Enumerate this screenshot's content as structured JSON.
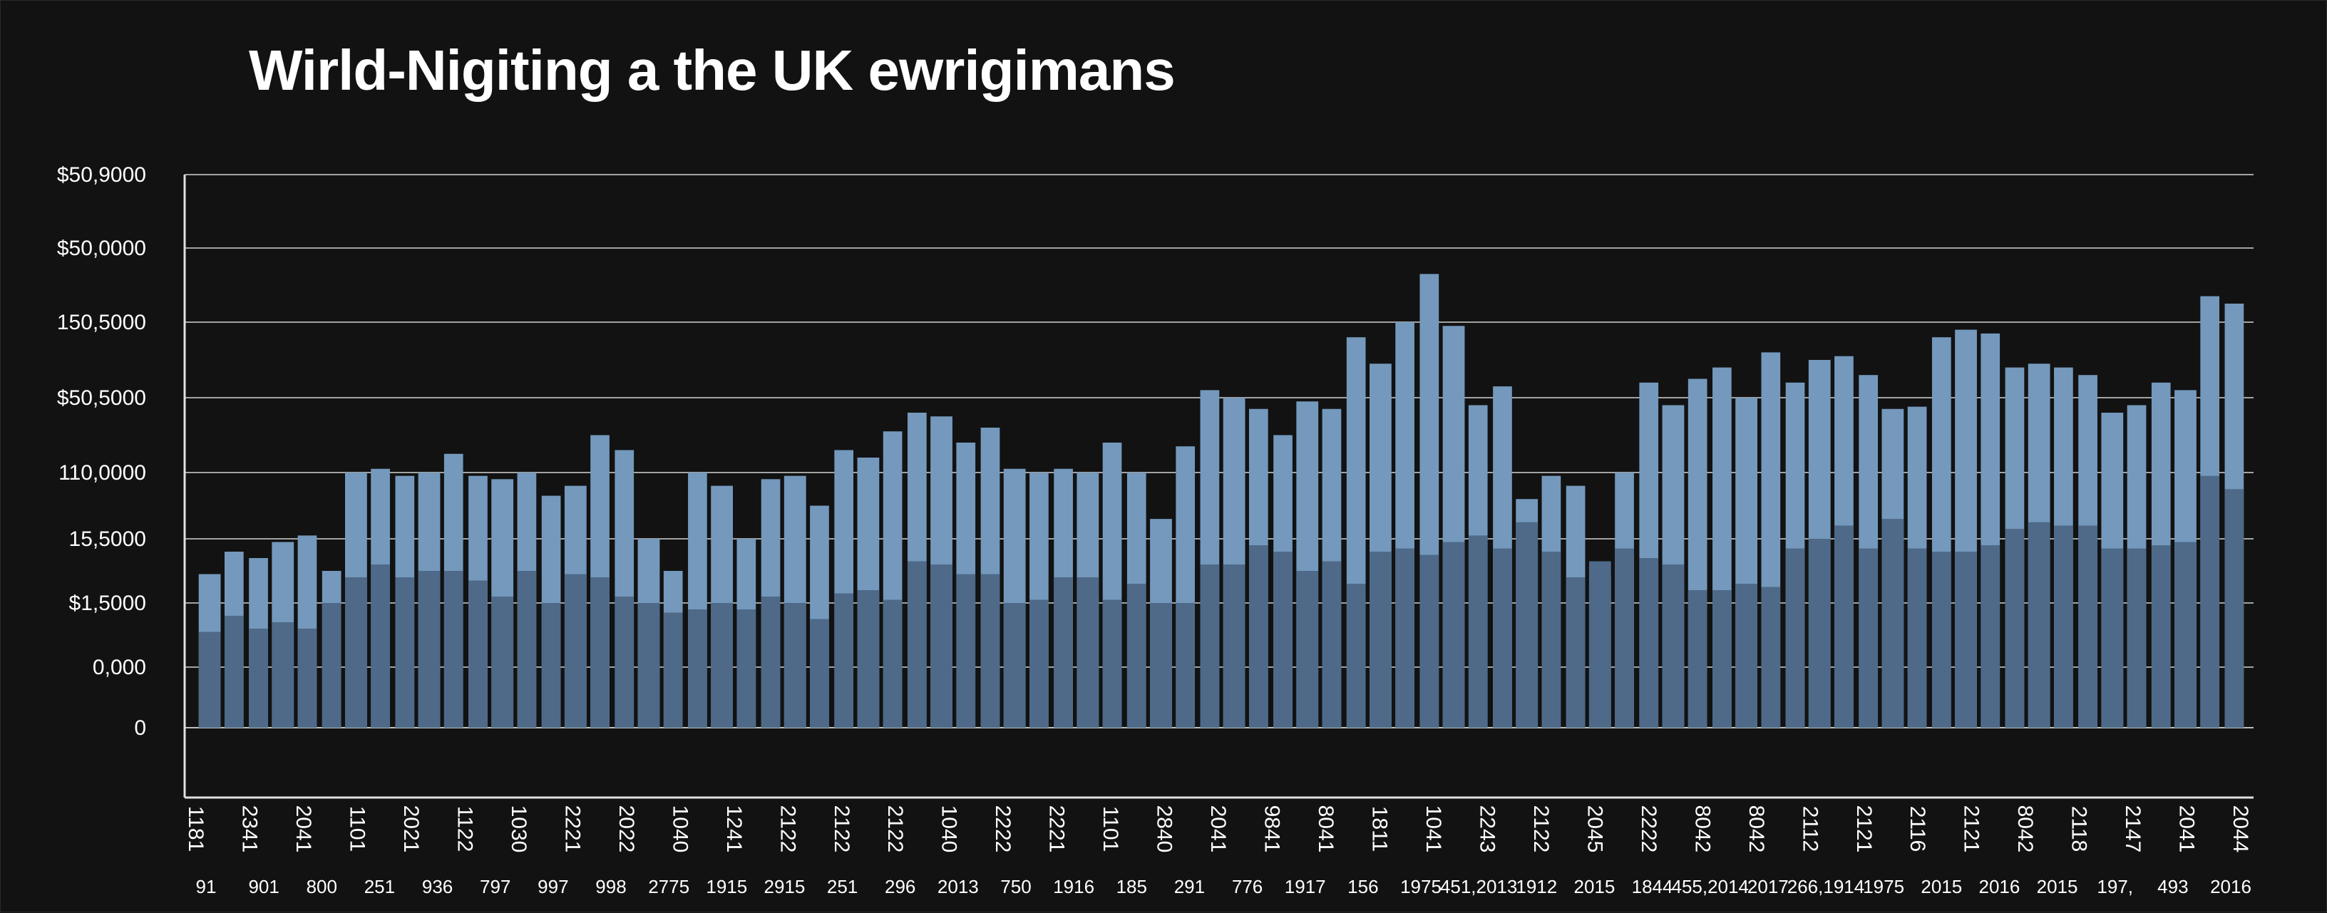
{
  "chart_data": {
    "type": "bar",
    "title": "Wirld-Nigiting a the UK ewrigimans",
    "xlabel": "",
    "ylabel": "",
    "grid": true,
    "y_tick_labels": [
      "0",
      "0,000",
      "$1,5000",
      "15,5000",
      "110,0000",
      "$50,5000",
      "150,5000",
      "$50,0000",
      "$50,9000"
    ],
    "ylim": [
      0,
      8
    ],
    "x_tick_labels_rotated": [
      "1181",
      "2341",
      "2041",
      "1101",
      "2021",
      "1122",
      "1030",
      "2221",
      "2022",
      "1040",
      "1241",
      "2122",
      "2122",
      "2122",
      "1040",
      "2222",
      "2221",
      "1101",
      "2840",
      "2041",
      "9841",
      "8041",
      "1811",
      "1041",
      "2243",
      "2122",
      "2045",
      "2222",
      "8042",
      "8042",
      "2112",
      "2121",
      "2116",
      "2121",
      "8042",
      "2118",
      "2147",
      "2041",
      "2044"
    ],
    "x_tick_labels": [
      "91",
      "901",
      "800",
      "251",
      "936",
      "797",
      "997",
      "998",
      "2775",
      "1915",
      "2915",
      "251",
      "296",
      "2013",
      "750",
      "1916",
      "185",
      "291",
      "776",
      "1917",
      "156",
      "1975",
      "451,2013",
      "1912",
      "2015",
      "1844",
      "455,2014",
      "2017",
      "266,1914",
      "1975",
      "2015",
      "2016",
      "2015",
      "197,",
      "493",
      "2016"
    ],
    "series": [
      {
        "values": [
          1.55,
          1.8,
          1.6,
          1.7,
          1.6,
          2.0,
          2.4,
          2.6,
          2.4,
          2.5,
          2.5,
          2.35,
          2.1,
          2.5,
          2.0,
          2.45,
          2.4,
          2.1,
          2.0,
          1.85,
          1.9,
          2.0,
          1.9,
          2.1,
          2.0,
          1.75,
          2.15,
          2.2,
          2.05,
          2.65,
          2.6,
          2.45,
          2.45,
          2.0,
          2.05,
          2.4,
          2.4,
          2.05,
          2.3,
          2.0,
          2.0,
          2.6,
          2.6,
          2.9,
          2.8,
          2.5,
          2.65,
          2.3,
          2.8,
          2.85,
          2.75,
          2.95,
          3.05,
          2.85,
          3.25,
          2.8,
          2.4,
          2.65,
          2.85,
          2.7,
          2.6,
          2.2,
          2.2,
          2.3,
          2.25,
          2.85,
          3.0,
          3.2,
          2.85,
          3.3,
          2.85,
          2.8,
          2.8,
          2.9,
          3.15,
          3.25,
          3.2,
          3.2,
          2.85,
          2.85,
          2.9,
          2.95,
          3.95,
          3.75
        ]
      },
      {
        "values": [
          2.45,
          2.8,
          2.7,
          2.95,
          3.05,
          2.5,
          4.0,
          4.05,
          3.95,
          4.0,
          4.25,
          3.95,
          3.9,
          4.0,
          3.65,
          3.8,
          4.5,
          4.3,
          3.0,
          2.5,
          4.0,
          3.8,
          3.0,
          3.9,
          3.95,
          3.5,
          4.3,
          4.2,
          4.55,
          4.8,
          4.75,
          4.4,
          4.6,
          4.05,
          4.0,
          4.05,
          4.0,
          4.4,
          4.0,
          3.3,
          4.35,
          5.1,
          5.0,
          4.85,
          4.5,
          4.95,
          4.85,
          5.8,
          5.45,
          6.0,
          6.65,
          5.95,
          4.9,
          5.15,
          3.6,
          3.95,
          3.8,
          2.4,
          4.0,
          5.2,
          4.9,
          5.25,
          5.4,
          5.0,
          5.6,
          5.2,
          5.5,
          5.55,
          5.3,
          4.85,
          4.88,
          5.8,
          5.9,
          5.85,
          5.4,
          5.45,
          5.4,
          5.3,
          4.8,
          4.9,
          5.2,
          5.1,
          6.35,
          6.25
        ]
      }
    ]
  }
}
